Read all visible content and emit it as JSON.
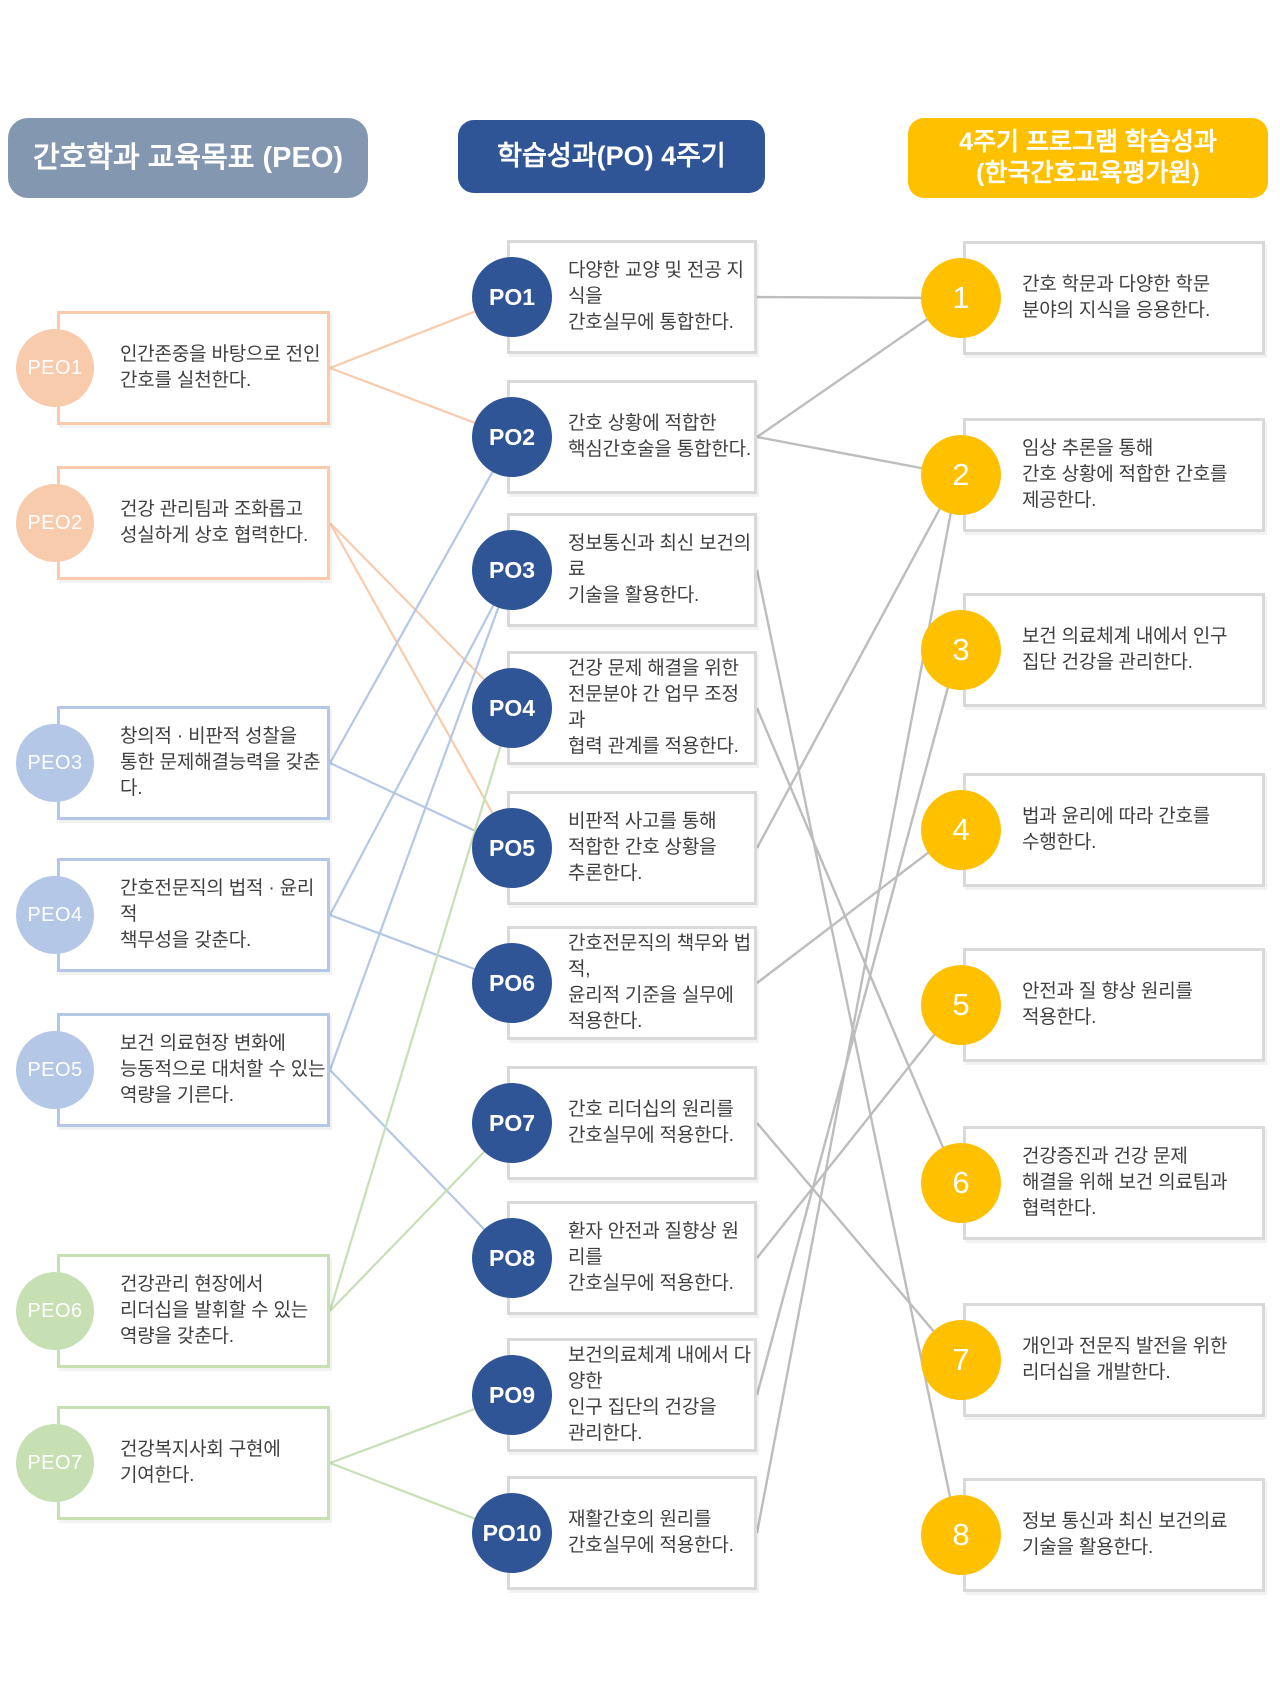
{
  "headers": {
    "peo": "간호학과 교육목표 (PEO)",
    "po": "학습성과(PO) 4주기",
    "program": "4주기 프로그램 학습성과\n(한국간호교육평가원)"
  },
  "peo": {
    "items": [
      {
        "id": "PEO1",
        "group": "orange",
        "text": "인간존중을 바탕으로 전인\n간호를 실천한다."
      },
      {
        "id": "PEO2",
        "group": "orange",
        "text": "건강 관리팀과 조화롭고\n성실하게 상호 협력한다."
      },
      {
        "id": "PEO3",
        "group": "blue",
        "text": "창의적 · 비판적 성찰을\n통한 문제해결능력을 갖춘다."
      },
      {
        "id": "PEO4",
        "group": "blue",
        "text": "간호전문직의 법적 · 윤리적\n책무성을 갖춘다."
      },
      {
        "id": "PEO5",
        "group": "blue",
        "text": "보건 의료현장 변화에\n능동적으로 대처할 수 있는\n역량을 기른다."
      },
      {
        "id": "PEO6",
        "group": "green",
        "text": "건강관리 현장에서\n리더십을 발휘할 수 있는\n역량을 갖춘다."
      },
      {
        "id": "PEO7",
        "group": "green",
        "text": "건강복지사회 구현에\n기여한다."
      }
    ]
  },
  "po": {
    "items": [
      {
        "id": "PO1",
        "text": "다양한 교양 및 전공 지식을\n간호실무에 통합한다."
      },
      {
        "id": "PO2",
        "text": "간호 상황에 적합한\n핵심간호술을 통합한다."
      },
      {
        "id": "PO3",
        "text": "정보통신과 최신 보건의료\n기술을 활용한다."
      },
      {
        "id": "PO4",
        "text": "건강 문제 해결을 위한\n전문분야 간 업무 조정과\n협력 관계를 적용한다."
      },
      {
        "id": "PO5",
        "text": "비판적 사고를 통해\n적합한 간호 상황을\n추론한다."
      },
      {
        "id": "PO6",
        "text": "간호전문직의 책무와 법적,\n윤리적 기준을 실무에\n적용한다."
      },
      {
        "id": "PO7",
        "text": "간호 리더십의 원리를\n간호실무에 적용한다."
      },
      {
        "id": "PO8",
        "text": "환자 안전과 질향상 원리를\n간호실무에 적용한다."
      },
      {
        "id": "PO9",
        "text": "보건의료체계 내에서 다양한\n인구 집단의 건강을\n관리한다."
      },
      {
        "id": "PO10",
        "text": "재활간호의 원리를\n간호실무에 적용한다."
      }
    ]
  },
  "outcomes": {
    "items": [
      {
        "id": "1",
        "text": "간호 학문과 다양한 학문\n분야의 지식을 응용한다."
      },
      {
        "id": "2",
        "text": "임상 추론을 통해\n간호 상황에 적합한 간호를\n제공한다."
      },
      {
        "id": "3",
        "text": "보건 의료체계 내에서 인구\n집단 건강을 관리한다."
      },
      {
        "id": "4",
        "text": "법과 윤리에 따라 간호를\n수행한다."
      },
      {
        "id": "5",
        "text": "안전과 질 향상 원리를\n적용한다."
      },
      {
        "id": "6",
        "text": "건강증진과 건강 문제\n해결을 위해 보건 의료팀과\n협력한다."
      },
      {
        "id": "7",
        "text": "개인과 전문직 발전을 위한\n리더십을 개발한다."
      },
      {
        "id": "8",
        "text": "정보 통신과 최신 보건의료\n기술을 활용한다."
      }
    ]
  },
  "colors": {
    "header_peo": "#8497B0",
    "header_po": "#2F5597",
    "header_program": "#FFC000",
    "peo_orange": "#F8CBAD",
    "peo_blue": "#B4C7E7",
    "peo_green": "#C6E0B4",
    "po_circle": "#2F5597",
    "outcome_circle": "#FFC000",
    "line_gray": "#BDBDBD",
    "box_border_gray": "#D9D9D9"
  },
  "connections": {
    "peo_to_po": [
      [
        "PEO1",
        "PO1"
      ],
      [
        "PEO1",
        "PO2"
      ],
      [
        "PEO2",
        "PO4"
      ],
      [
        "PEO2",
        "PO5"
      ],
      [
        "PEO3",
        "PO2"
      ],
      [
        "PEO3",
        "PO5"
      ],
      [
        "PEO4",
        "PO3"
      ],
      [
        "PEO4",
        "PO6"
      ],
      [
        "PEO5",
        "PO3"
      ],
      [
        "PEO5",
        "PO8"
      ],
      [
        "PEO6",
        "PO4"
      ],
      [
        "PEO6",
        "PO7"
      ],
      [
        "PEO7",
        "PO9"
      ],
      [
        "PEO7",
        "PO10"
      ]
    ],
    "po_to_outcome": [
      [
        "PO1",
        "O1"
      ],
      [
        "PO2",
        "O1"
      ],
      [
        "PO2",
        "O2"
      ],
      [
        "PO3",
        "O8"
      ],
      [
        "PO4",
        "O6"
      ],
      [
        "PO5",
        "O2"
      ],
      [
        "PO6",
        "O4"
      ],
      [
        "PO7",
        "O7"
      ],
      [
        "PO8",
        "O5"
      ],
      [
        "PO9",
        "O3"
      ],
      [
        "PO10",
        "O2"
      ]
    ]
  }
}
